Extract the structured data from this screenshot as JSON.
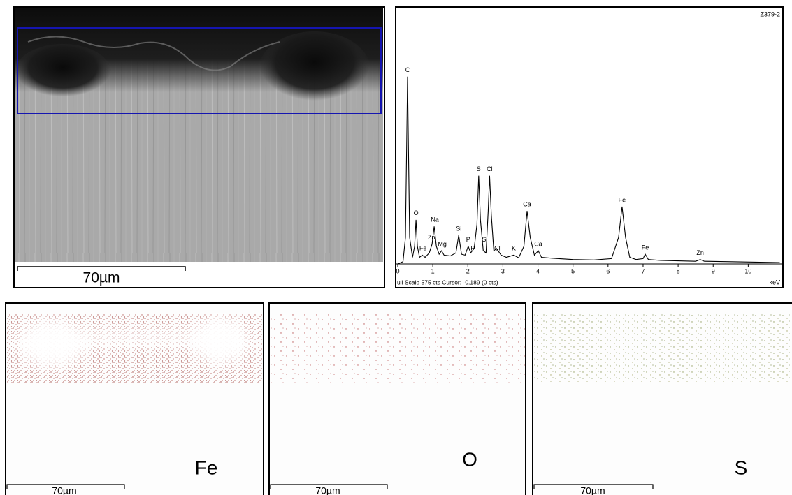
{
  "sem": {
    "scale_bar": "70µm"
  },
  "chart_data": {
    "type": "line",
    "title": "Z379-2",
    "status": "ull Scale 575 cts Cursor: -0.189  (0 cts)",
    "x_label": "keV",
    "x": [
      0.0,
      0.15,
      0.22,
      0.26,
      0.28,
      0.3,
      0.34,
      0.42,
      0.48,
      0.52,
      0.56,
      0.62,
      0.7,
      0.78,
      0.9,
      0.98,
      1.04,
      1.1,
      1.18,
      1.25,
      1.32,
      1.5,
      1.66,
      1.74,
      1.82,
      1.92,
      2.01,
      2.08,
      2.18,
      2.26,
      2.31,
      2.36,
      2.44,
      2.52,
      2.58,
      2.62,
      2.67,
      2.74,
      2.82,
      2.95,
      3.1,
      3.31,
      3.45,
      3.6,
      3.69,
      3.78,
      3.9,
      4.01,
      4.1,
      4.4,
      5.0,
      5.6,
      6.1,
      6.3,
      6.4,
      6.5,
      6.62,
      6.8,
      7.0,
      7.06,
      7.15,
      7.5,
      8.0,
      8.5,
      8.63,
      8.75,
      9.5,
      10.9
    ],
    "values": [
      0,
      5,
      60,
      300,
      425,
      300,
      60,
      15,
      40,
      100,
      40,
      15,
      20,
      15,
      25,
      45,
      85,
      40,
      22,
      30,
      20,
      18,
      25,
      65,
      22,
      20,
      40,
      25,
      35,
      90,
      200,
      100,
      30,
      25,
      120,
      200,
      110,
      30,
      35,
      20,
      15,
      20,
      14,
      40,
      120,
      60,
      20,
      30,
      15,
      13,
      10,
      9,
      12,
      60,
      130,
      60,
      15,
      10,
      12,
      22,
      10,
      8,
      7,
      6,
      10,
      6,
      5,
      3
    ],
    "color": "#000000",
    "xlim": [
      0,
      10.95
    ],
    "ylim": [
      0,
      575
    ],
    "xticks": [
      0,
      1,
      2,
      3,
      4,
      5,
      6,
      7,
      8,
      9,
      10
    ],
    "annotations": [
      {
        "text": "C",
        "x": 0.28,
        "y": 425
      },
      {
        "text": "O",
        "x": 0.52,
        "y": 100
      },
      {
        "text": "Fe",
        "x": 0.72,
        "y": 20
      },
      {
        "text": "Zn",
        "x": 0.96,
        "y": 45
      },
      {
        "text": "Na",
        "x": 1.06,
        "y": 85
      },
      {
        "text": "Mg",
        "x": 1.27,
        "y": 30
      },
      {
        "text": "Si",
        "x": 1.74,
        "y": 65
      },
      {
        "text": "P",
        "x": 2.01,
        "y": 40
      },
      {
        "text": "P",
        "x": 2.14,
        "y": 20
      },
      {
        "text": "S",
        "x": 2.31,
        "y": 200
      },
      {
        "text": "S",
        "x": 2.46,
        "y": 40
      },
      {
        "text": "Cl",
        "x": 2.62,
        "y": 200
      },
      {
        "text": "Cl",
        "x": 2.84,
        "y": 20
      },
      {
        "text": "K",
        "x": 3.31,
        "y": 20
      },
      {
        "text": "Ca",
        "x": 3.69,
        "y": 120
      },
      {
        "text": "Ca",
        "x": 4.01,
        "y": 30
      },
      {
        "text": "Fe",
        "x": 6.4,
        "y": 130
      },
      {
        "text": "Fe",
        "x": 7.06,
        "y": 22
      },
      {
        "text": "Zn",
        "x": 8.63,
        "y": 10
      }
    ]
  },
  "maps": [
    {
      "element": "Fe",
      "scale_bar": "70µm"
    },
    {
      "element": "O",
      "scale_bar": "70µm"
    },
    {
      "element": "S",
      "scale_bar": "70µm"
    }
  ]
}
